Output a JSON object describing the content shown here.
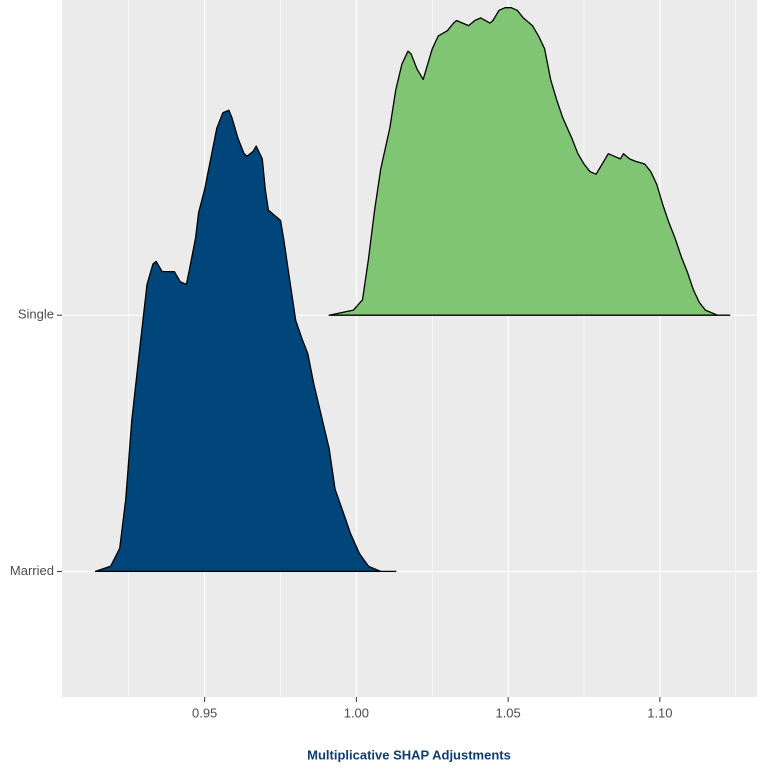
{
  "chart_data": {
    "type": "ridgeline",
    "xlabel": "Multiplicative SHAP Adjustments",
    "xlim": [
      0.903,
      1.132
    ],
    "xticks": [
      0.95,
      {
        "value": 1,
        "label": "1.00"
      },
      1.05,
      {
        "value": 1.1,
        "label": "1.10"
      }
    ],
    "minor_xticks": [
      0.925,
      0.975,
      1.025,
      1.075,
      1.125
    ],
    "ylim": [
      -0.49,
      2.23
    ],
    "grid": true,
    "series": [
      {
        "name": "Married",
        "color": "#00467a",
        "x": [
          0.914,
          0.919,
          0.922,
          0.924,
          0.926,
          0.929,
          0.931,
          0.933,
          0.934,
          0.936,
          0.938,
          0.94,
          0.942,
          0.944,
          0.945,
          0.947,
          0.948,
          0.95,
          0.952,
          0.954,
          0.956,
          0.958,
          0.959,
          0.961,
          0.963,
          0.964,
          0.966,
          0.967,
          0.969,
          0.97,
          0.971,
          0.973,
          0.975,
          0.976,
          0.978,
          0.98,
          0.982,
          0.984,
          0.986,
          0.988,
          0.991,
          0.993,
          0.996,
          0.998,
          1.001,
          1.004,
          1.008,
          1.013
        ],
        "values": [
          0,
          0.02,
          0.09,
          0.28,
          0.59,
          0.91,
          1.12,
          1.2,
          1.21,
          1.17,
          1.17,
          1.17,
          1.13,
          1.12,
          1.18,
          1.3,
          1.4,
          1.49,
          1.61,
          1.73,
          1.79,
          1.8,
          1.77,
          1.69,
          1.63,
          1.62,
          1.64,
          1.66,
          1.61,
          1.49,
          1.41,
          1.39,
          1.37,
          1.3,
          1.14,
          0.98,
          0.91,
          0.85,
          0.73,
          0.63,
          0.48,
          0.32,
          0.22,
          0.15,
          0.07,
          0.02,
          0,
          0
        ]
      },
      {
        "name": "Single",
        "color": "#80c574",
        "x": [
          0.991,
          0.999,
          1.002,
          1.004,
          1.006,
          1.008,
          1.011,
          1.013,
          1.015,
          1.017,
          1.018,
          1.02,
          1.022,
          1.023,
          1.025,
          1.027,
          1.03,
          1.032,
          1.033,
          1.035,
          1.037,
          1.039,
          1.041,
          1.044,
          1.045,
          1.047,
          1.049,
          1.051,
          1.053,
          1.055,
          1.058,
          1.06,
          1.062,
          1.064,
          1.066,
          1.068,
          1.071,
          1.073,
          1.075,
          1.077,
          1.079,
          1.081,
          1.083,
          1.085,
          1.087,
          1.088,
          1.09,
          1.092,
          1.095,
          1.097,
          1.099,
          1.101,
          1.103,
          1.105,
          1.107,
          1.109,
          1.111,
          1.113,
          1.115,
          1.119,
          1.123
        ],
        "values": [
          0,
          0.02,
          0.06,
          0.22,
          0.41,
          0.57,
          0.73,
          0.88,
          0.98,
          1.03,
          1.02,
          0.96,
          0.92,
          0.96,
          1.04,
          1.09,
          1.11,
          1.14,
          1.15,
          1.14,
          1.13,
          1.15,
          1.16,
          1.14,
          1.15,
          1.19,
          1.2,
          1.2,
          1.19,
          1.16,
          1.13,
          1.09,
          1.04,
          0.92,
          0.84,
          0.77,
          0.69,
          0.63,
          0.59,
          0.56,
          0.55,
          0.59,
          0.63,
          0.62,
          0.61,
          0.63,
          0.61,
          0.6,
          0.59,
          0.56,
          0.51,
          0.43,
          0.36,
          0.3,
          0.23,
          0.17,
          0.1,
          0.05,
          0.02,
          0,
          0
        ]
      }
    ]
  }
}
